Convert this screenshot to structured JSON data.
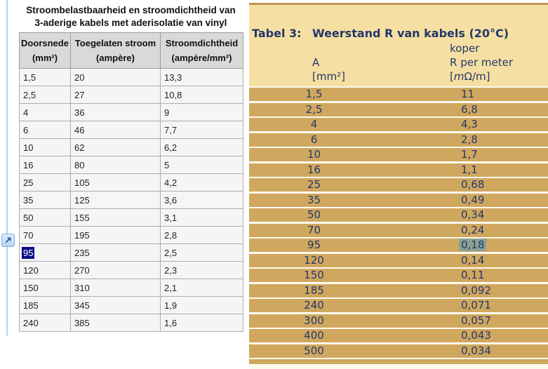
{
  "left_table": {
    "title_line1": "Stroombelastbaarheid en stroomdichtheid van",
    "title_line2": "3-aderige kabels met aderisolatie van vinyl",
    "headers": [
      {
        "name": "Doorsnede",
        "unit": "(mm²)"
      },
      {
        "name": "Toegelaten stroom",
        "unit": "(ampère)"
      },
      {
        "name": "Stroomdichtheid",
        "unit": "(ampère/mm²)"
      }
    ],
    "rows": [
      [
        "1,5",
        "20",
        "13,3"
      ],
      [
        "2,5",
        "27",
        "10,8"
      ],
      [
        "4",
        "36",
        "9"
      ],
      [
        "6",
        "46",
        "7,7"
      ],
      [
        "10",
        "62",
        "6,2"
      ],
      [
        "16",
        "80",
        "5"
      ],
      [
        "25",
        "105",
        "4,2"
      ],
      [
        "35",
        "125",
        "3,6"
      ],
      [
        "50",
        "155",
        "3,1"
      ],
      [
        "70",
        "195",
        "2,8"
      ],
      [
        "95",
        "235",
        "2,5"
      ],
      [
        "120",
        "270",
        "2,3"
      ],
      [
        "150",
        "310",
        "2,1"
      ],
      [
        "185",
        "345",
        "1,9"
      ],
      [
        "240",
        "385",
        "1,6"
      ]
    ],
    "selected_value": "95"
  },
  "right_table": {
    "label": "Tabel 3:",
    "title": "Weerstand R van kabels (20°C)",
    "material": "koper",
    "col1_name": "A",
    "col1_unit": "[mm²]",
    "col2_name": "R per meter",
    "col2_unit": {
      "open": "[",
      "milli": "m",
      "omega": "Ω",
      "close": "/m]"
    },
    "rows": [
      [
        "1,5",
        "11"
      ],
      [
        "2,5",
        "6,8"
      ],
      [
        "4",
        "4,3"
      ],
      [
        "6",
        "2,8"
      ],
      [
        "10",
        "1,7"
      ],
      [
        "16",
        "1,1"
      ],
      [
        "25",
        "0,68"
      ],
      [
        "35",
        "0,49"
      ],
      [
        "50",
        "0,34"
      ],
      [
        "70",
        "0,24"
      ],
      [
        "95",
        "0,18"
      ],
      [
        "120",
        "0,14"
      ],
      [
        "150",
        "0,11"
      ],
      [
        "185",
        "0,092"
      ],
      [
        "240",
        "0,071"
      ],
      [
        "300",
        "0,057"
      ],
      [
        "400",
        "0,043"
      ],
      [
        "500",
        "0,034"
      ]
    ],
    "highlighted_value": "0,18"
  },
  "icons": {
    "jump_icon": "arrow-up-right"
  },
  "colors": {
    "selection_navy": "#0b0b87",
    "highlight_sage": "#8ba092",
    "row_gold": "#d0a75e",
    "header_tan": "#f6dfa2",
    "top_bar_gold": "#bc9750",
    "navy_text": "#21386a",
    "header_gray": "#d9d9d9",
    "guide_blue": "#b5d2ec"
  }
}
